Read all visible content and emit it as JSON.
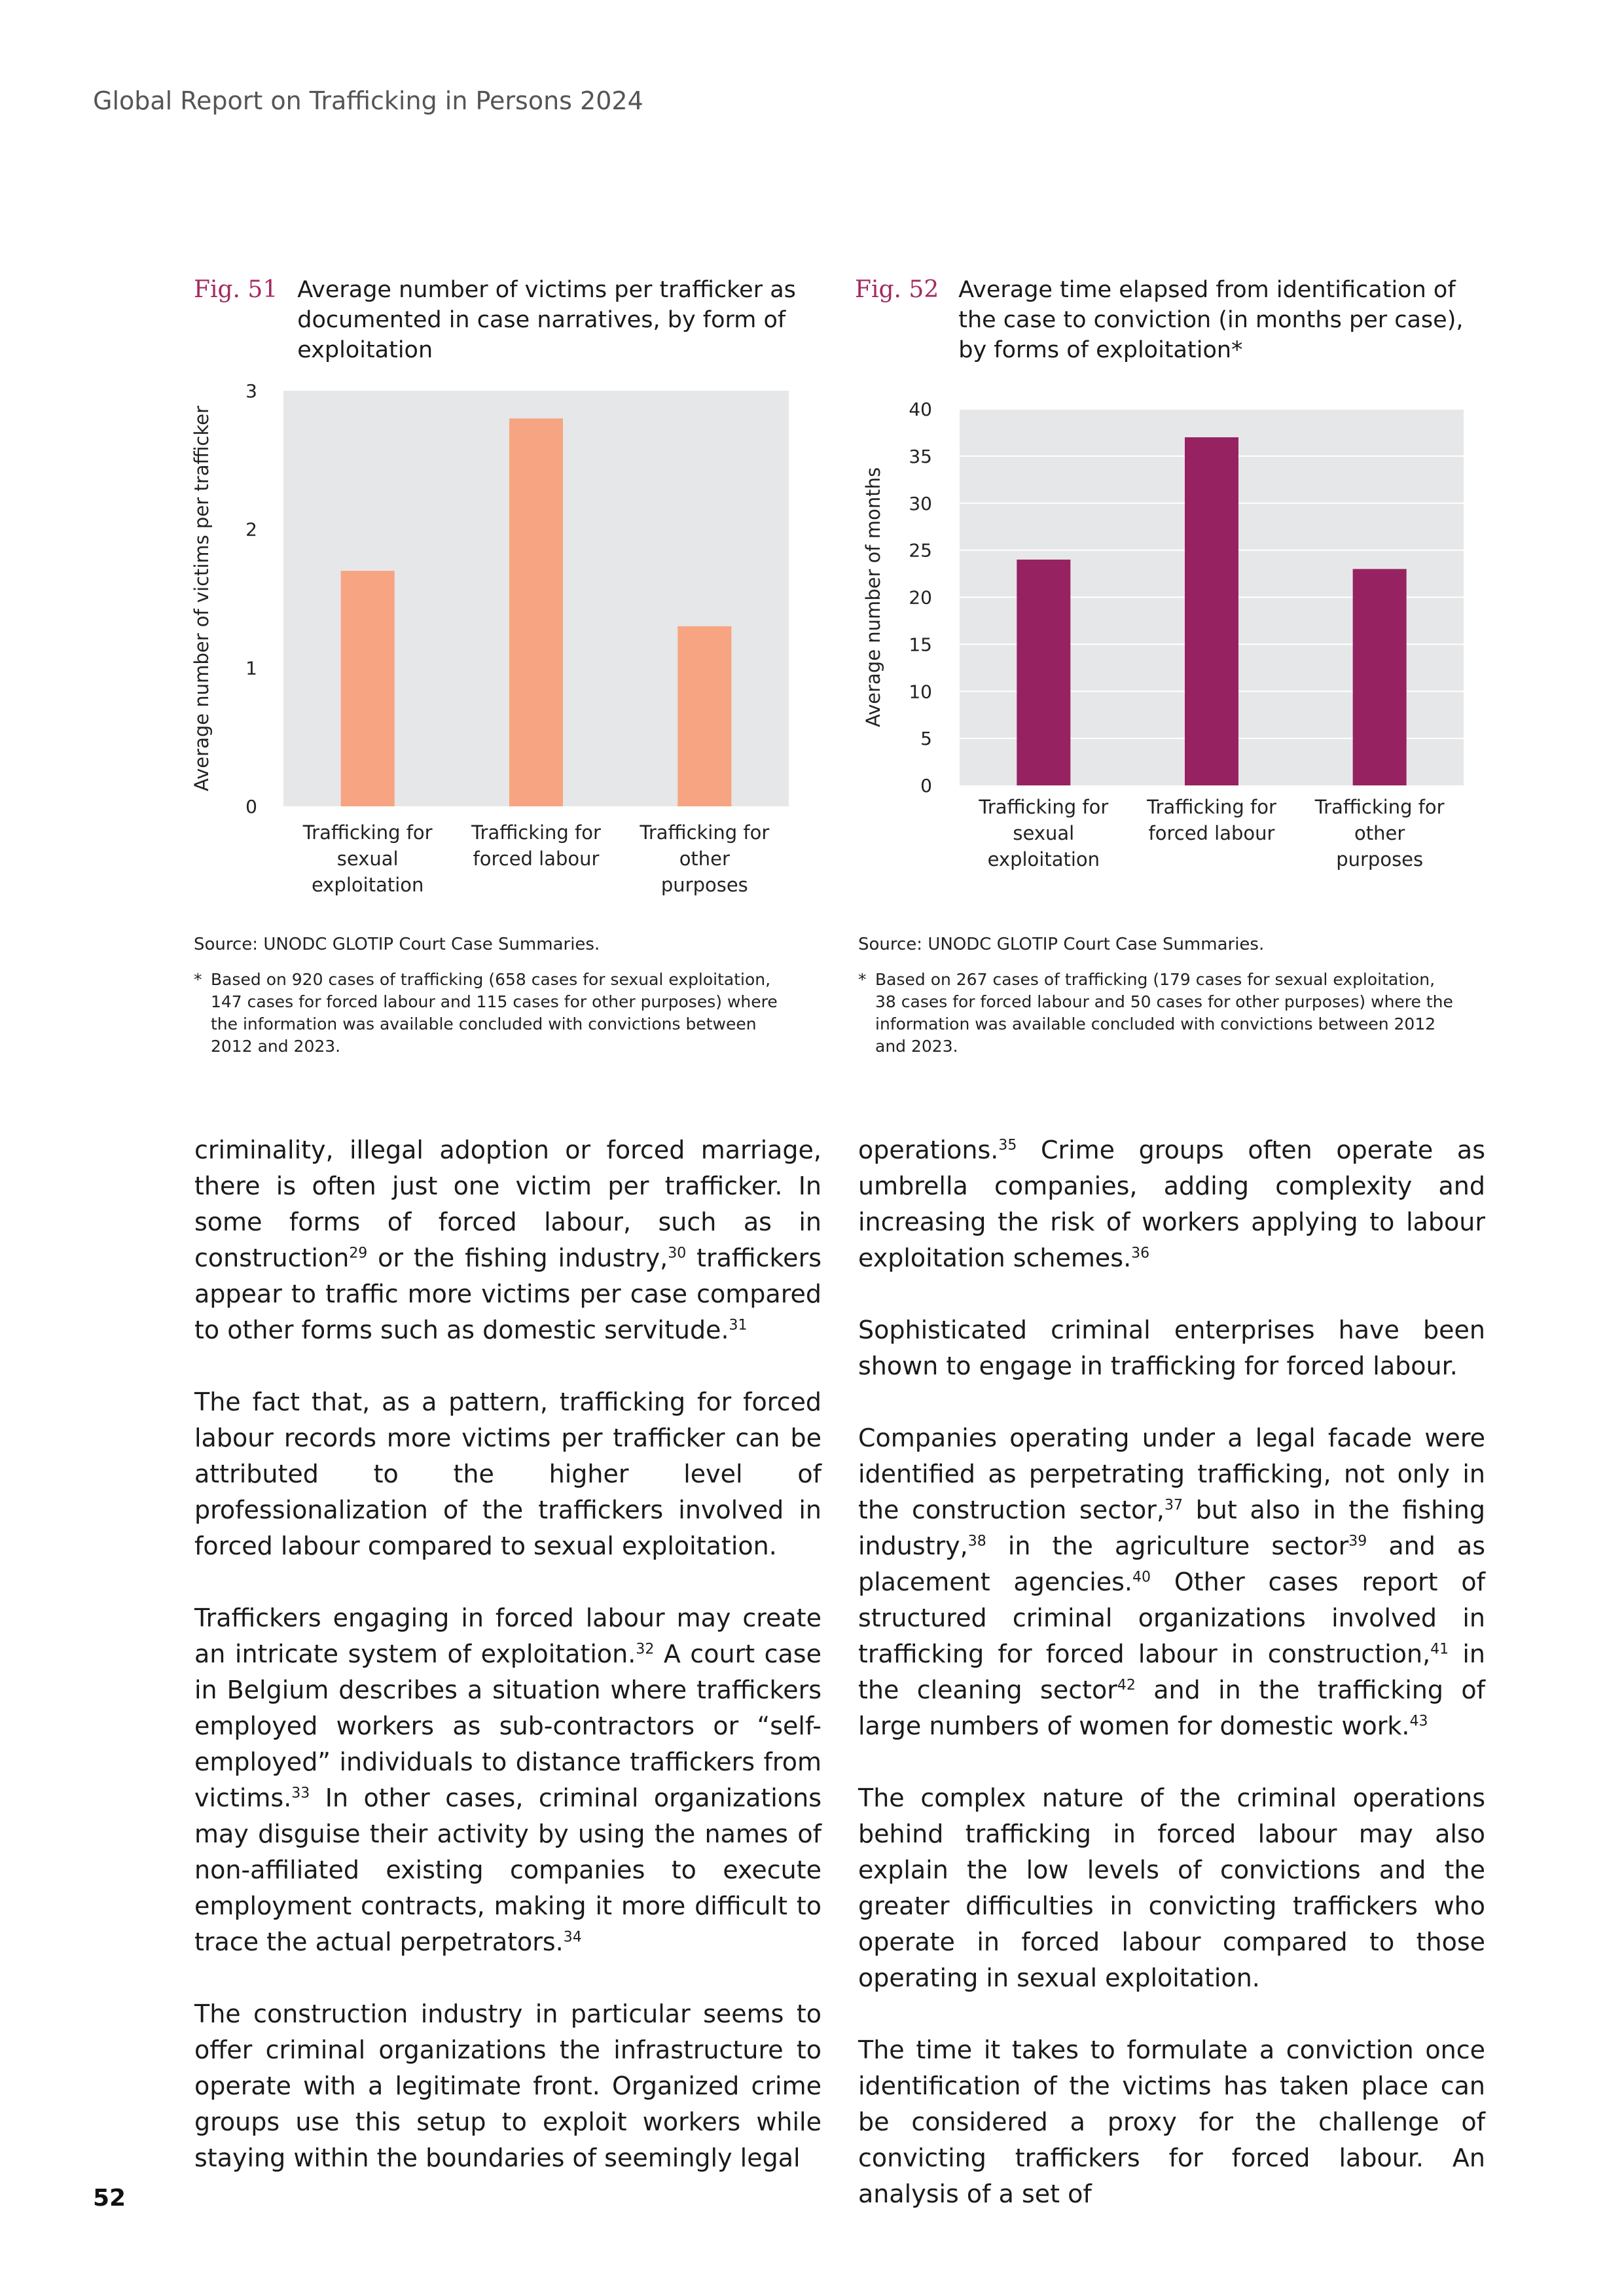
{
  "header": {
    "running_title": "Global Report on Trafficking in Persons 2024"
  },
  "figures": [
    {
      "label": "Fig. 51",
      "title": "Average number of victims per trafficker as documented in case narratives, by form of exploitation",
      "source": "Source: UNODC GLOTIP Court Case Summaries.",
      "note_marker": "*",
      "note": "Based on 920 cases of trafficking (658 cases for sexual exploitation, 147 cases for forced labour and 115 cases for other purposes) where the information was available concluded with convictions between 2012 and 2023."
    },
    {
      "label": "Fig. 52",
      "title": "Average time elapsed from identification of the case to conviction (in months per case), by forms of exploitation*",
      "source": "Source: UNODC GLOTIP Court Case Summaries.",
      "note_marker": "*",
      "note": "Based on 267 cases of trafficking (179 cases for sexual exploitation, 38 cases for forced labour and 50 cases for other purposes) where the information was available concluded with convictions between 2012 and 2023."
    }
  ],
  "chart_data": [
    {
      "type": "bar",
      "categories": [
        [
          "Trafficking for",
          "sexual",
          "exploitation"
        ],
        [
          "Trafficking for",
          "forced labour"
        ],
        [
          "Trafficking for",
          "other",
          "purposes"
        ]
      ],
      "values": [
        1.7,
        2.8,
        1.3
      ],
      "ylabel": "Average number of victims per trafficker",
      "ylim": [
        0,
        3
      ],
      "yticks": [
        0,
        1,
        2,
        3
      ],
      "grid": false,
      "colors": {
        "bar": "#f7a482",
        "plot_bg": "#e6e7e8"
      }
    },
    {
      "type": "bar",
      "categories": [
        [
          "Trafficking for",
          "sexual",
          "exploitation"
        ],
        [
          "Trafficking for",
          "forced labour"
        ],
        [
          "Trafficking for",
          "other",
          "purposes"
        ]
      ],
      "values": [
        24,
        37,
        23
      ],
      "ylabel": "Average number of months",
      "ylim": [
        0,
        40
      ],
      "yticks": [
        0,
        5,
        10,
        15,
        20,
        25,
        30,
        35,
        40
      ],
      "grid": true,
      "colors": {
        "bar": "#962262",
        "plot_bg": "#e6e7e8",
        "grid": "#ffffff"
      }
    }
  ],
  "body": {
    "left": [
      "criminality, illegal adoption or forced marriage, there is often just one victim per trafficker. In some forms of forced labour, such as in construction<sup>29</sup> or the fishing industry,<sup>30</sup> traffickers appear to traffic more victims per case compared to other forms such as domestic servitude.<sup>31</sup>",
      "The fact that, as a pattern, trafficking for forced labour records more victims per trafficker can be attributed to the higher level of professionalization of the traffickers involved in forced labour com­pared to sexual exploitation.",
      "Traffickers engaging in forced labour may create an intricate system of exploitation.<sup>32</sup> A court case in Belgium describes a situation where traffickers employed workers as sub-contractors or “self-em­ployed” individuals to distance traffickers from victims.<sup>33</sup> In other cases, criminal organizations may disguise their activity by using the names of non-af­filiated existing companies to execute employment contracts, making it more difficult to trace the actual perpetrators.<sup>34</sup>",
      "The construction industry in particular seems to offer criminal organizations the infrastructure to operate with a legitimate front. Organized crime groups use this setup to exploit workers while stay­ing within the boundaries of seemingly legal"
    ],
    "right": [
      "operations.<sup>35</sup> Crime groups often operate as umbrella companies, adding complexity and increasing the risk of workers applying to labour exploitation schemes.<sup>36</sup>",
      "Sophisticated criminal enterprises have been shown to engage in trafficking for forced labour.",
      "Companies operating under a legal facade were identified as perpetrating trafficking, not only in the construction sector,<sup>37</sup> but also in the fishing indus­try,<sup>38</sup> in the agriculture sector<sup>39</sup> and as placement agencies.<sup>40</sup> Other cases report of structured crimi­nal organizations involved in trafficking for forced labour in construction,<sup>41</sup> in the cleaning sector<sup>42</sup> and in the trafficking of large numbers of women for domestic work.<sup>43</sup>",
      "The complex nature of the criminal operations behind trafficking in forced labour may also explain the low levels of convictions and the greater diffi­culties in convicting traffickers who operate in forced labour compared to those operating in sexual exploitation.",
      "The time it takes to formulate a conviction once identification of the victims has taken place can be considered a proxy for the challenge of convicting traffickers for forced labour. An analysis of a set of"
    ]
  },
  "footer": {
    "page_number": "52"
  }
}
